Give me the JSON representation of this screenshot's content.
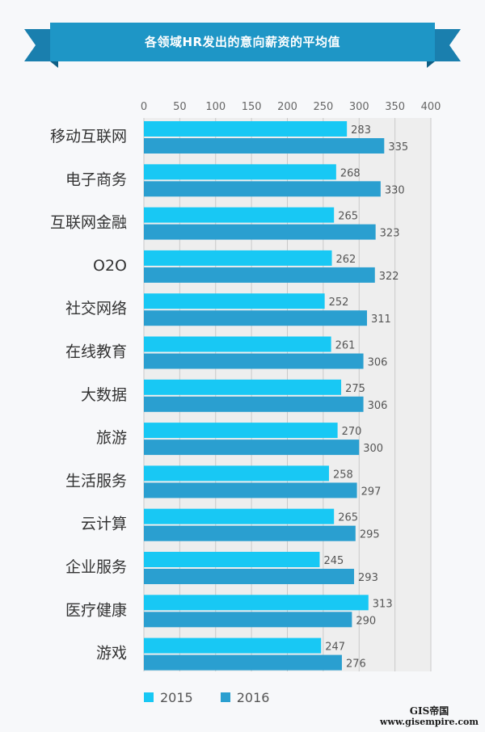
{
  "chart_data": {
    "type": "bar",
    "orientation": "horizontal",
    "title": "各领域HR发出的意向薪资的平均值",
    "categories": [
      "移动互联网",
      "电子商务",
      "互联网金融",
      "O2O",
      "社交网络",
      "在线教育",
      "大数据",
      "旅游",
      "生活服务",
      "云计算",
      "企业服务",
      "医疗健康",
      "游戏"
    ],
    "series": [
      {
        "name": "2015",
        "color": "#18c8f4",
        "values": [
          283,
          268,
          265,
          262,
          252,
          261,
          275,
          270,
          258,
          265,
          245,
          313,
          247
        ]
      },
      {
        "name": "2016",
        "color": "#2a9fd0",
        "values": [
          335,
          330,
          323,
          322,
          311,
          306,
          306,
          300,
          297,
          295,
          293,
          290,
          276
        ]
      }
    ],
    "xlim": [
      0,
      400
    ],
    "xticks": [
      "0",
      "50",
      "100",
      "150",
      "200",
      "250",
      "300",
      "350",
      "400"
    ],
    "grid": true,
    "legend": "bottom-left",
    "accent": "#1e96c6"
  },
  "watermark": {
    "top": "GIS帝国",
    "bottom": "www.gisempire.com"
  }
}
